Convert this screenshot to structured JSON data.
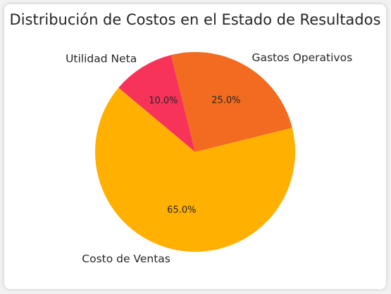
{
  "chart_data": {
    "type": "pie",
    "title": "Distribución de Costos en el Estado de Resultados",
    "slices": [
      {
        "label": "Costo de Ventas",
        "value": 65.0,
        "pct_label": "65.0%",
        "color": "#ffb000"
      },
      {
        "label": "Gastos Operativos",
        "value": 25.0,
        "pct_label": "25.0%",
        "color": "#f26b21"
      },
      {
        "label": "Utilidad Neta",
        "value": 10.0,
        "pct_label": "10.0%",
        "color": "#f7335a"
      }
    ],
    "start_angle_deg": 140,
    "direction": "counterclockwise",
    "legend": "none"
  }
}
